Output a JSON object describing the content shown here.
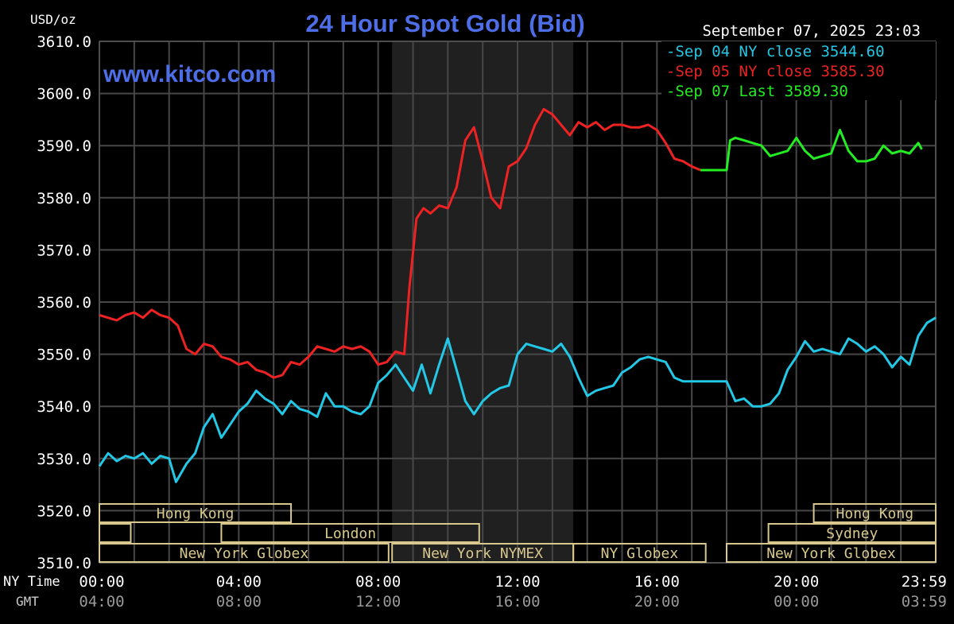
{
  "chart_data": {
    "type": "line",
    "title": "24 Hour Spot Gold (Bid)",
    "website": "www.kitco.com",
    "units_label": "USD/oz",
    "timestamp": "September 07, 2025 23:03",
    "ylim": [
      3510.0,
      3610.0
    ],
    "y_ticks": [
      "3610.0",
      "3600.0",
      "3590.0",
      "3580.0",
      "3570.0",
      "3560.0",
      "3550.0",
      "3540.0",
      "3530.0",
      "3520.0",
      "3510.0"
    ],
    "y_tick_values": [
      3610,
      3600,
      3590,
      3580,
      3570,
      3560,
      3550,
      3540,
      3530,
      3520,
      3510
    ],
    "x_range_hours": [
      0,
      24
    ],
    "x_tick_hours": [
      0,
      4,
      8,
      12,
      16,
      20,
      24
    ],
    "x_label_ny": "NY Time",
    "x_label_gmt": "GMT",
    "x_ticks_ny": [
      "00:00",
      "04:00",
      "08:00",
      "12:00",
      "16:00",
      "20:00",
      "23:59"
    ],
    "x_ticks_gmt": [
      "04:00",
      "08:00",
      "12:00",
      "16:00",
      "20:00",
      "00:00",
      "03:59"
    ],
    "shaded_region_hours": [
      8.4,
      13.6
    ],
    "grid": true,
    "legend_position": "top-right",
    "legend": [
      {
        "label": "Sep 04 NY close 3544.60",
        "color": "#22c8e6"
      },
      {
        "label": "Sep 05 NY close 3585.30",
        "color": "#ee2222"
      },
      {
        "label": "Sep 07 Last 3589.30",
        "color": "#22ee22"
      }
    ],
    "sessions": [
      {
        "name": "Hong Kong",
        "row": 0,
        "start": 0,
        "end": 5.5,
        "show_label": true
      },
      {
        "name": "Hong Kong",
        "row": 0,
        "start": 20.5,
        "end": 24,
        "show_label": true
      },
      {
        "name": "",
        "row": 1,
        "start": 0,
        "end": 0.9,
        "show_label": false
      },
      {
        "name": "London",
        "row": 1,
        "start": 3.5,
        "end": 10.9,
        "show_label": true
      },
      {
        "name": "Sydney",
        "row": 1,
        "start": 19.2,
        "end": 24,
        "show_label": true
      },
      {
        "name": "New York Globex",
        "row": 2,
        "start": 0,
        "end": 8.3,
        "show_label": true
      },
      {
        "name": "New York NYMEX",
        "row": 2,
        "start": 8.4,
        "end": 13.6,
        "show_label": true
      },
      {
        "name": "NY Globex",
        "row": 2,
        "start": 13.6,
        "end": 17.4,
        "show_label": true
      },
      {
        "name": "New York Globex",
        "row": 2,
        "start": 18,
        "end": 24,
        "show_label": true
      }
    ],
    "series": [
      {
        "name": "Sep 04 NY close 3544.60",
        "color": "#22c8e6",
        "points": [
          [
            0.0,
            3528.5
          ],
          [
            0.25,
            3531.0
          ],
          [
            0.5,
            3529.5
          ],
          [
            0.75,
            3530.5
          ],
          [
            1.0,
            3530.0
          ],
          [
            1.25,
            3531.0
          ],
          [
            1.5,
            3529.0
          ],
          [
            1.75,
            3530.5
          ],
          [
            2.0,
            3530.0
          ],
          [
            2.2,
            3525.5
          ],
          [
            2.5,
            3529.0
          ],
          [
            2.75,
            3531.0
          ],
          [
            3.0,
            3536.0
          ],
          [
            3.25,
            3538.5
          ],
          [
            3.5,
            3534.0
          ],
          [
            3.75,
            3536.5
          ],
          [
            4.0,
            3539.0
          ],
          [
            4.25,
            3540.5
          ],
          [
            4.5,
            3543.0
          ],
          [
            4.75,
            3541.5
          ],
          [
            5.0,
            3540.5
          ],
          [
            5.25,
            3538.5
          ],
          [
            5.5,
            3541.0
          ],
          [
            5.75,
            3539.5
          ],
          [
            6.0,
            3539.0
          ],
          [
            6.25,
            3538.0
          ],
          [
            6.5,
            3542.5
          ],
          [
            6.75,
            3540.0
          ],
          [
            7.0,
            3540.0
          ],
          [
            7.25,
            3539.0
          ],
          [
            7.5,
            3538.5
          ],
          [
            7.75,
            3540.0
          ],
          [
            8.0,
            3544.5
          ],
          [
            8.25,
            3546.0
          ],
          [
            8.5,
            3548.0
          ],
          [
            8.75,
            3545.5
          ],
          [
            9.0,
            3543.0
          ],
          [
            9.25,
            3548.0
          ],
          [
            9.5,
            3542.5
          ],
          [
            9.75,
            3548.0
          ],
          [
            10.0,
            3553.0
          ],
          [
            10.25,
            3547.0
          ],
          [
            10.5,
            3541.0
          ],
          [
            10.75,
            3538.5
          ],
          [
            11.0,
            3541.0
          ],
          [
            11.25,
            3542.5
          ],
          [
            11.5,
            3543.5
          ],
          [
            11.75,
            3544.0
          ],
          [
            12.0,
            3550.0
          ],
          [
            12.25,
            3552.0
          ],
          [
            12.5,
            3551.5
          ],
          [
            12.75,
            3551.0
          ],
          [
            13.0,
            3550.5
          ],
          [
            13.25,
            3552.0
          ],
          [
            13.5,
            3549.5
          ],
          [
            13.75,
            3545.5
          ],
          [
            14.0,
            3542.0
          ],
          [
            14.25,
            3543.0
          ],
          [
            14.5,
            3543.5
          ],
          [
            14.75,
            3544.0
          ],
          [
            15.0,
            3546.5
          ],
          [
            15.25,
            3547.5
          ],
          [
            15.5,
            3549.0
          ],
          [
            15.75,
            3549.5
          ],
          [
            16.0,
            3549.0
          ],
          [
            16.25,
            3548.5
          ],
          [
            16.5,
            3545.5
          ],
          [
            16.75,
            3544.8
          ],
          [
            17.0,
            3544.8
          ],
          [
            17.5,
            3544.8
          ],
          [
            18.0,
            3544.8
          ],
          [
            18.25,
            3541.0
          ],
          [
            18.5,
            3541.5
          ],
          [
            18.75,
            3540.0
          ],
          [
            19.0,
            3540.0
          ],
          [
            19.25,
            3540.5
          ],
          [
            19.5,
            3542.5
          ],
          [
            19.75,
            3547.0
          ],
          [
            20.0,
            3549.5
          ],
          [
            20.25,
            3552.5
          ],
          [
            20.5,
            3550.5
          ],
          [
            20.75,
            3551.0
          ],
          [
            21.0,
            3550.5
          ],
          [
            21.25,
            3550.0
          ],
          [
            21.5,
            3553.0
          ],
          [
            21.75,
            3552.0
          ],
          [
            22.0,
            3550.5
          ],
          [
            22.25,
            3551.5
          ],
          [
            22.5,
            3550.0
          ],
          [
            22.75,
            3547.5
          ],
          [
            23.0,
            3549.5
          ],
          [
            23.25,
            3548.0
          ],
          [
            23.5,
            3553.5
          ],
          [
            23.75,
            3556.0
          ],
          [
            24.0,
            3557.0
          ]
        ]
      },
      {
        "name": "Sep 05 NY close 3585.30",
        "color": "#ee2222",
        "points": [
          [
            0.0,
            3557.5
          ],
          [
            0.25,
            3557.0
          ],
          [
            0.5,
            3556.5
          ],
          [
            0.75,
            3557.5
          ],
          [
            1.0,
            3558.0
          ],
          [
            1.25,
            3557.0
          ],
          [
            1.5,
            3558.5
          ],
          [
            1.75,
            3557.5
          ],
          [
            2.0,
            3557.0
          ],
          [
            2.25,
            3555.5
          ],
          [
            2.5,
            3551.0
          ],
          [
            2.75,
            3550.0
          ],
          [
            3.0,
            3552.0
          ],
          [
            3.25,
            3551.5
          ],
          [
            3.5,
            3549.5
          ],
          [
            3.75,
            3549.0
          ],
          [
            4.0,
            3548.0
          ],
          [
            4.25,
            3548.5
          ],
          [
            4.5,
            3547.0
          ],
          [
            4.75,
            3546.5
          ],
          [
            5.0,
            3545.5
          ],
          [
            5.25,
            3546.0
          ],
          [
            5.5,
            3548.5
          ],
          [
            5.75,
            3548.0
          ],
          [
            6.0,
            3549.5
          ],
          [
            6.25,
            3551.5
          ],
          [
            6.5,
            3551.0
          ],
          [
            6.75,
            3550.5
          ],
          [
            7.0,
            3551.5
          ],
          [
            7.25,
            3551.0
          ],
          [
            7.5,
            3551.5
          ],
          [
            7.75,
            3550.5
          ],
          [
            8.0,
            3548.0
          ],
          [
            8.25,
            3548.5
          ],
          [
            8.5,
            3550.5
          ],
          [
            8.75,
            3550.0
          ],
          [
            8.9,
            3563.0
          ],
          [
            9.1,
            3576.0
          ],
          [
            9.3,
            3578.0
          ],
          [
            9.5,
            3577.0
          ],
          [
            9.75,
            3578.5
          ],
          [
            10.0,
            3578.0
          ],
          [
            10.25,
            3582.0
          ],
          [
            10.5,
            3591.0
          ],
          [
            10.75,
            3593.5
          ],
          [
            11.0,
            3587.0
          ],
          [
            11.25,
            3580.0
          ],
          [
            11.5,
            3578.0
          ],
          [
            11.75,
            3586.0
          ],
          [
            12.0,
            3587.0
          ],
          [
            12.25,
            3589.5
          ],
          [
            12.5,
            3594.0
          ],
          [
            12.75,
            3597.0
          ],
          [
            13.0,
            3596.0
          ],
          [
            13.25,
            3594.0
          ],
          [
            13.5,
            3592.0
          ],
          [
            13.75,
            3594.5
          ],
          [
            14.0,
            3593.5
          ],
          [
            14.25,
            3594.5
          ],
          [
            14.5,
            3593.0
          ],
          [
            14.75,
            3594.0
          ],
          [
            15.0,
            3594.0
          ],
          [
            15.25,
            3593.5
          ],
          [
            15.5,
            3593.5
          ],
          [
            15.75,
            3594.0
          ],
          [
            16.0,
            3593.0
          ],
          [
            16.25,
            3590.5
          ],
          [
            16.5,
            3587.5
          ],
          [
            16.75,
            3587.0
          ],
          [
            17.0,
            3586.0
          ],
          [
            17.25,
            3585.3
          ]
        ]
      },
      {
        "name": "Sep 07 Last 3589.30",
        "color": "#22ee22",
        "points": [
          [
            17.25,
            3585.3
          ],
          [
            17.5,
            3585.3
          ],
          [
            18.0,
            3585.3
          ],
          [
            18.1,
            3591.0
          ],
          [
            18.25,
            3591.5
          ],
          [
            18.5,
            3591.0
          ],
          [
            18.75,
            3590.5
          ],
          [
            19.0,
            3590.0
          ],
          [
            19.25,
            3588.0
          ],
          [
            19.5,
            3588.5
          ],
          [
            19.75,
            3589.0
          ],
          [
            20.0,
            3591.5
          ],
          [
            20.25,
            3589.0
          ],
          [
            20.5,
            3587.5
          ],
          [
            20.75,
            3588.0
          ],
          [
            21.0,
            3588.5
          ],
          [
            21.25,
            3593.0
          ],
          [
            21.5,
            3589.0
          ],
          [
            21.75,
            3587.0
          ],
          [
            22.0,
            3587.0
          ],
          [
            22.25,
            3587.5
          ],
          [
            22.5,
            3590.0
          ],
          [
            22.75,
            3588.5
          ],
          [
            23.0,
            3589.0
          ],
          [
            23.25,
            3588.5
          ],
          [
            23.5,
            3590.5
          ],
          [
            23.6,
            3589.3
          ]
        ]
      }
    ]
  }
}
